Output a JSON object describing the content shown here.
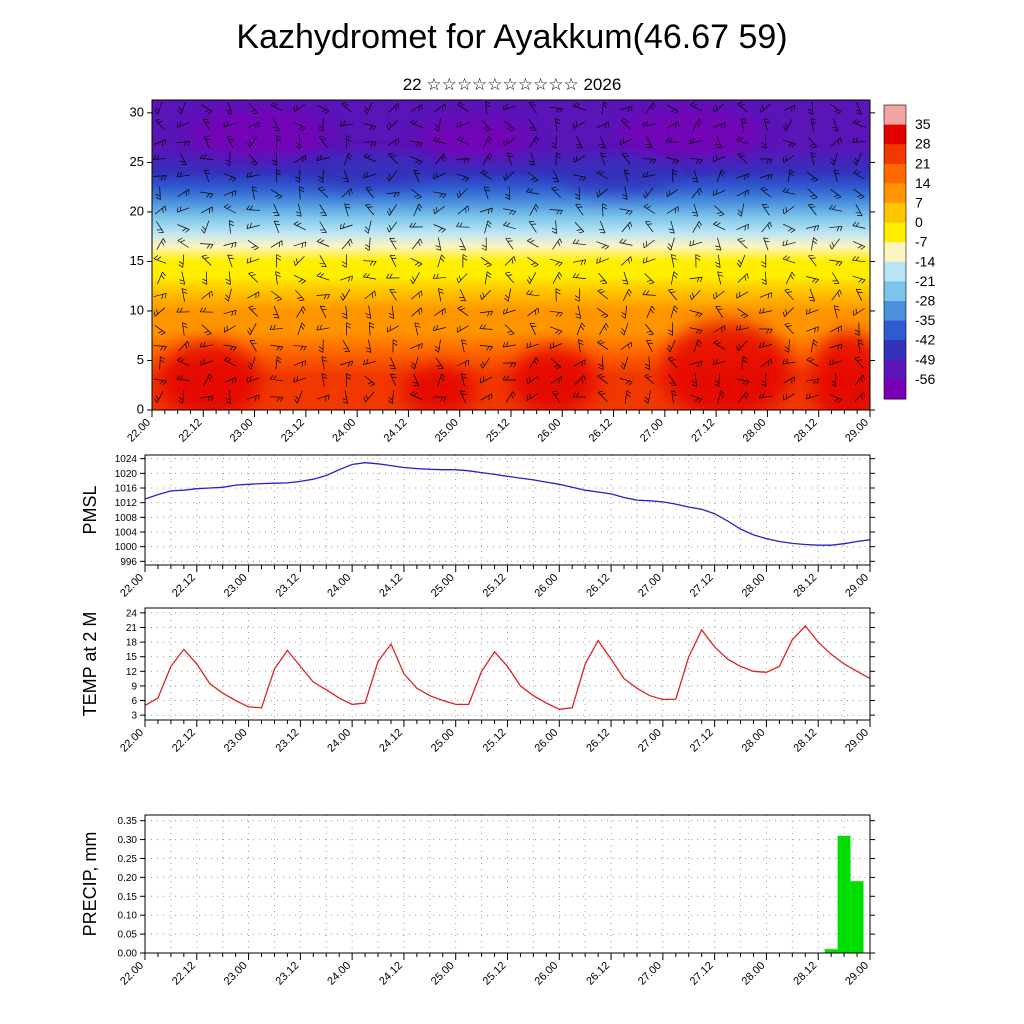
{
  "title": "Kazhydromet for Ayakkum(46.67 59)",
  "subtitle": "22 ☆☆☆☆☆☆☆☆☆☆ 2026",
  "chart_data": [
    {
      "type": "heatmap",
      "name": "Temperature height-time cross-section with wind barbs",
      "ylim": [
        0,
        31.3
      ],
      "yticks": [
        0,
        5,
        10,
        15,
        20,
        25,
        30
      ],
      "x_tick_labels": [
        "22.00",
        "22.12",
        "23.00",
        "23.12",
        "24.00",
        "24.12",
        "25.00",
        "25.12",
        "26.00",
        "26.12",
        "27.00",
        "27.12",
        "28.00",
        "28.12",
        "29.00"
      ],
      "colorbar": {
        "labels": [
          35,
          28,
          21,
          14,
          7,
          0,
          -7,
          -14,
          -21,
          -28,
          -35,
          -42,
          -49,
          -56
        ],
        "colors": [
          "#f4a3a3",
          "#e30000",
          "#f03800",
          "#ff6a00",
          "#ff9500",
          "#ffc400",
          "#ffee00",
          "#fdf5c0",
          "#b8e4f5",
          "#7cc4ea",
          "#4a90dd",
          "#2e5bd0",
          "#3431bb",
          "#5a14b8",
          "#7a00b8"
        ]
      },
      "vertical_profile": [
        {
          "level": 31.3,
          "temp": -50
        },
        {
          "level": 29,
          "temp": -55
        },
        {
          "level": 26.5,
          "temp": -50
        },
        {
          "level": 24,
          "temp": -44
        },
        {
          "level": 22.5,
          "temp": -38
        },
        {
          "level": 21,
          "temp": -30
        },
        {
          "level": 19.5,
          "temp": -24
        },
        {
          "level": 18,
          "temp": -18
        },
        {
          "level": 16.5,
          "temp": -11
        },
        {
          "level": 15,
          "temp": -6
        },
        {
          "level": 13.5,
          "temp": -2
        },
        {
          "level": 12,
          "temp": 3
        },
        {
          "level": 10,
          "temp": 8
        },
        {
          "level": 8,
          "temp": 13
        },
        {
          "level": 6,
          "temp": 17
        },
        {
          "level": 3.5,
          "temp": 22
        },
        {
          "level": 1,
          "temp": 26
        },
        {
          "level": 0,
          "temp": 27
        }
      ],
      "hotspots": [
        {
          "x": 0.08,
          "level": 3,
          "rx": 0.07,
          "ry": 4,
          "temp": 30
        },
        {
          "x": 0.4,
          "level": 2,
          "rx": 0.05,
          "ry": 2.5,
          "temp": 29
        },
        {
          "x": 0.56,
          "level": 3,
          "rx": 0.06,
          "ry": 3.5,
          "temp": 29
        },
        {
          "x": 0.8,
          "level": 4,
          "rx": 0.09,
          "ry": 5,
          "temp": 30
        },
        {
          "x": 0.97,
          "level": 3,
          "rx": 0.05,
          "ry": 5,
          "temp": 31
        },
        {
          "x": 0.15,
          "level": 28,
          "rx": 0.1,
          "ry": 2.5,
          "temp": -58
        },
        {
          "x": 0.45,
          "level": 27.5,
          "rx": 0.08,
          "ry": 2,
          "temp": -57
        },
        {
          "x": 0.75,
          "level": 28,
          "rx": 0.1,
          "ry": 2.5,
          "temp": -58
        },
        {
          "x": 0.3,
          "level": 24,
          "rx": 0.08,
          "ry": 1.5,
          "temp": -47
        },
        {
          "x": 0.65,
          "level": 23.5,
          "rx": 0.08,
          "ry": 1.5,
          "temp": -47
        }
      ]
    },
    {
      "type": "line",
      "name": "PMSL",
      "color": "#2222cc",
      "ylim": [
        995,
        1025
      ],
      "yticks": [
        996,
        1000,
        1004,
        1008,
        1012,
        1016,
        1020,
        1024
      ],
      "x_step_hours": 3,
      "x_tick_labels": [
        "22.00",
        "22.12",
        "23.00",
        "23.12",
        "24.00",
        "24.12",
        "25.00",
        "25.12",
        "26.00",
        "26.12",
        "27.00",
        "27.12",
        "28.00",
        "28.12",
        "29.00"
      ],
      "values": [
        1013,
        1014.2,
        1015.2,
        1015.4,
        1015.8,
        1016,
        1016.2,
        1016.8,
        1017,
        1017.2,
        1017.3,
        1017.4,
        1017.8,
        1018.4,
        1019.4,
        1021,
        1022.4,
        1022.9,
        1022.6,
        1022.1,
        1021.6,
        1021.3,
        1021.1,
        1021,
        1021,
        1020.7,
        1020.2,
        1019.7,
        1019.2,
        1018.7,
        1018.2,
        1017.6,
        1017,
        1016.2,
        1015.4,
        1014.9,
        1014.4,
        1013.4,
        1012.7,
        1012.5,
        1012.2,
        1011.6,
        1010.8,
        1010.2,
        1009,
        1007,
        1004.8,
        1003.2,
        1002.2,
        1001.4,
        1000.9,
        1000.6,
        1000.4,
        1000.4,
        1000.8,
        1001.4,
        1001.9
      ]
    },
    {
      "type": "line",
      "name": "TEMP at 2 M",
      "color": "#dd2222",
      "ylim": [
        2,
        25
      ],
      "yticks": [
        3,
        6,
        9,
        12,
        15,
        18,
        21,
        24
      ],
      "x_step_hours": 3,
      "x_tick_labels": [
        "22.00",
        "22.12",
        "23.00",
        "23.12",
        "24.00",
        "24.12",
        "25.00",
        "25.12",
        "26.00",
        "26.12",
        "27.00",
        "27.12",
        "28.00",
        "28.12",
        "29.00"
      ],
      "values": [
        5,
        6.5,
        13,
        16.5,
        13.5,
        9.5,
        7.5,
        6,
        4.7,
        4.5,
        12.5,
        16.3,
        13,
        9.8,
        8.2,
        6.5,
        5.2,
        5.5,
        14,
        17.6,
        11.5,
        8.5,
        7,
        6,
        5.2,
        5.2,
        12,
        16,
        13,
        9,
        7,
        5.5,
        4.2,
        4.5,
        13.5,
        18.3,
        14.5,
        10.5,
        8.5,
        7,
        6.2,
        6.3,
        15,
        20.5,
        17,
        14.5,
        13,
        12,
        11.8,
        13,
        18.5,
        21.3,
        18,
        15.5,
        13.5,
        12,
        10.5
      ]
    },
    {
      "type": "bar",
      "name": "PRECIP, mm",
      "color": "#00dd00",
      "ylim": [
        0,
        0.365
      ],
      "yticks": [
        0,
        0.05,
        0.1,
        0.15,
        0.2,
        0.25,
        0.3,
        0.35
      ],
      "ytick_labels": [
        "0.00",
        "0.05",
        "0.10",
        "0.15",
        "0.20",
        "0.25",
        "0.30",
        "0.35"
      ],
      "x_step_hours": 3,
      "x_tick_labels": [
        "22.00",
        "22.12",
        "23.00",
        "23.12",
        "24.00",
        "24.12",
        "25.00",
        "25.12",
        "26.00",
        "26.12",
        "27.00",
        "27.12",
        "28.00",
        "28.12",
        "29.00"
      ],
      "values": [
        0,
        0,
        0,
        0,
        0,
        0,
        0,
        0,
        0,
        0,
        0,
        0,
        0,
        0,
        0,
        0,
        0,
        0,
        0,
        0,
        0,
        0,
        0,
        0,
        0,
        0,
        0,
        0,
        0,
        0,
        0,
        0,
        0,
        0,
        0,
        0,
        0,
        0,
        0,
        0,
        0,
        0,
        0,
        0,
        0,
        0,
        0,
        0,
        0,
        0,
        0,
        0,
        0,
        0.01,
        0.31,
        0.19,
        0
      ]
    }
  ]
}
